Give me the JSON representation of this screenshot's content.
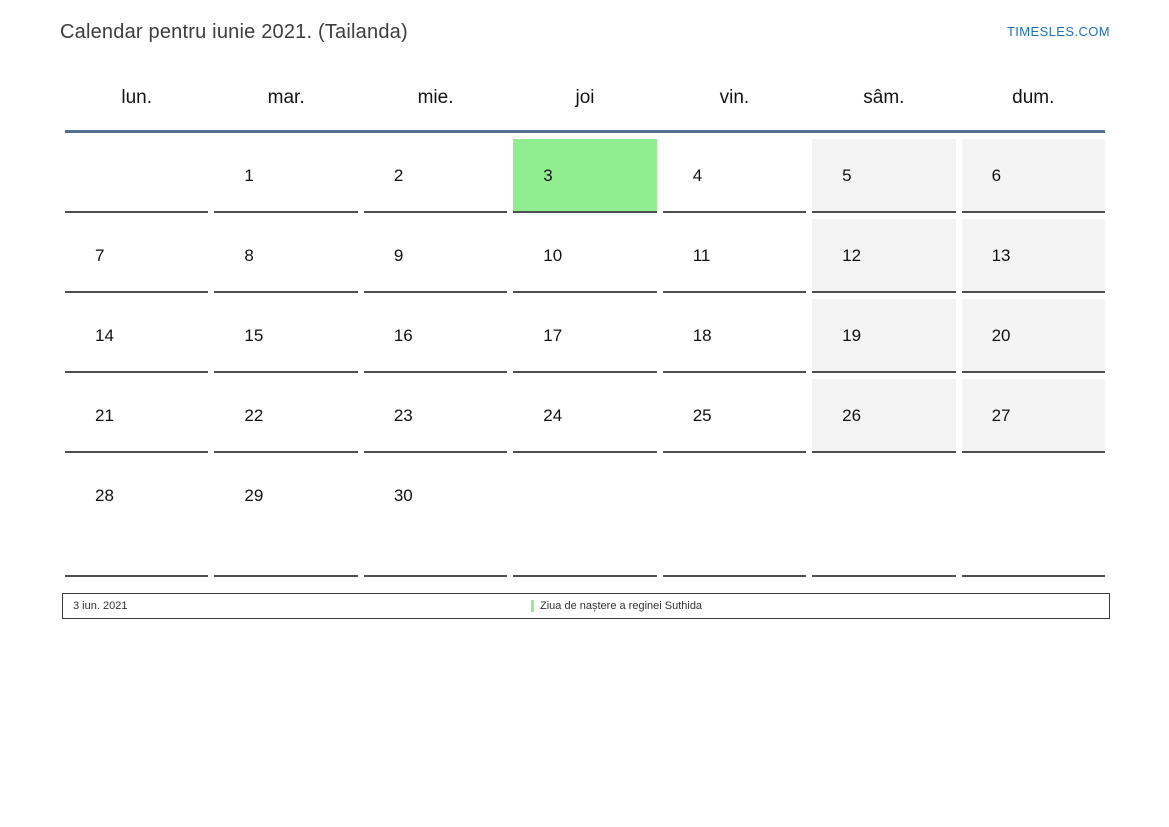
{
  "header": {
    "title": "Calendar pentru iunie 2021. (Tailanda)",
    "site_link": "TIMESLES.COM"
  },
  "weekdays": [
    "lun.",
    "mar.",
    "mie.",
    "joi",
    "vin.",
    "sâm.",
    "dum."
  ],
  "calendar": {
    "month_label": "iunie 2021",
    "highlighted_day": "3",
    "rows": [
      [
        {
          "day": "",
          "type": "empty"
        },
        {
          "day": "1",
          "type": "day"
        },
        {
          "day": "2",
          "type": "day"
        },
        {
          "day": "3",
          "type": "highlight"
        },
        {
          "day": "4",
          "type": "day"
        },
        {
          "day": "5",
          "type": "weekend"
        },
        {
          "day": "6",
          "type": "weekend"
        }
      ],
      [
        {
          "day": "7",
          "type": "day"
        },
        {
          "day": "8",
          "type": "day"
        },
        {
          "day": "9",
          "type": "day"
        },
        {
          "day": "10",
          "type": "day"
        },
        {
          "day": "11",
          "type": "day"
        },
        {
          "day": "12",
          "type": "weekend"
        },
        {
          "day": "13",
          "type": "weekend"
        }
      ],
      [
        {
          "day": "14",
          "type": "day"
        },
        {
          "day": "15",
          "type": "day"
        },
        {
          "day": "16",
          "type": "day"
        },
        {
          "day": "17",
          "type": "day"
        },
        {
          "day": "18",
          "type": "day"
        },
        {
          "day": "19",
          "type": "weekend"
        },
        {
          "day": "20",
          "type": "weekend"
        }
      ],
      [
        {
          "day": "21",
          "type": "day"
        },
        {
          "day": "22",
          "type": "day"
        },
        {
          "day": "23",
          "type": "day"
        },
        {
          "day": "24",
          "type": "day"
        },
        {
          "day": "25",
          "type": "day"
        },
        {
          "day": "26",
          "type": "weekend"
        },
        {
          "day": "27",
          "type": "weekend"
        }
      ],
      [
        {
          "day": "28",
          "type": "day"
        },
        {
          "day": "29",
          "type": "day"
        },
        {
          "day": "30",
          "type": "day"
        },
        {
          "day": "",
          "type": "empty"
        },
        {
          "day": "",
          "type": "empty"
        },
        {
          "day": "",
          "type": "empty"
        },
        {
          "day": "",
          "type": "empty"
        }
      ]
    ]
  },
  "legend": {
    "date": "3 iun. 2021",
    "event": "Ziua de naștere a reginei Suthida"
  },
  "colors": {
    "highlight_green": "#90ee90",
    "weekend_gray": "#f4f4f4",
    "rule_blue": "#53708f",
    "link_blue": "#1f6fba",
    "border_dark": "#4f4f4f"
  }
}
